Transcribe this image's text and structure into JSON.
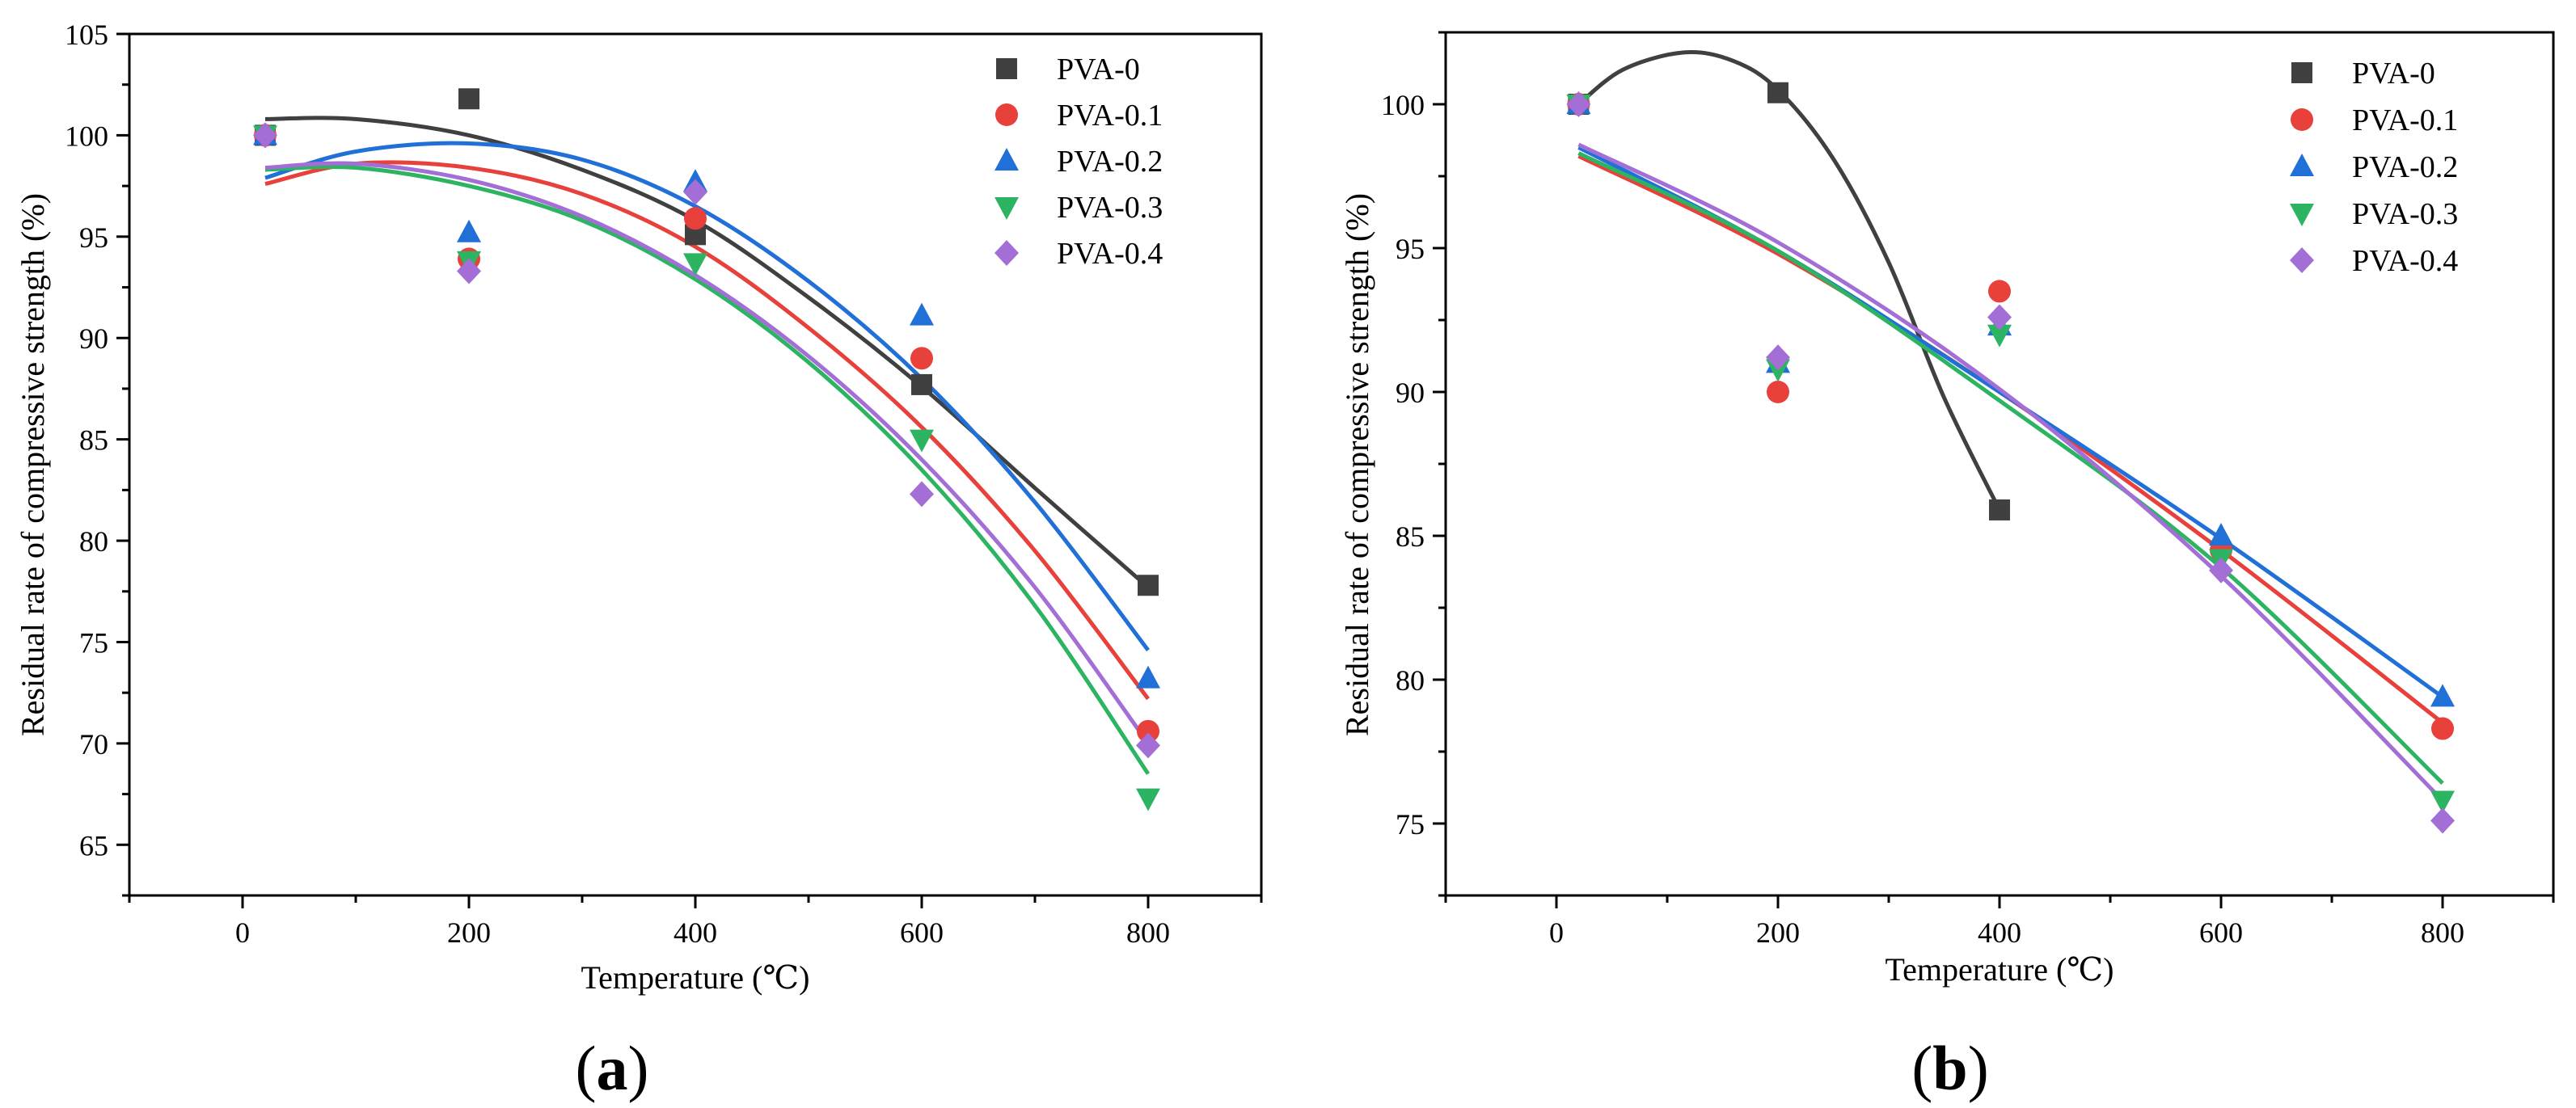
{
  "figure": {
    "panels": [
      "(a)",
      "(b)"
    ],
    "series_colors": {
      "PVA-0": "#404040",
      "PVA-0.1": "#e8403a",
      "PVA-0.2": "#2170d8",
      "PVA-0.3": "#2db462",
      "PVA-0.4": "#a36fd6"
    },
    "markers": {
      "PVA-0": "square",
      "PVA-0.1": "circle",
      "PVA-0.2": "triangle-up",
      "PVA-0.3": "triangle-down",
      "PVA-0.4": "diamond"
    }
  },
  "chart_data": [
    {
      "type": "scatter",
      "panel_label": "(a)",
      "xlabel": "Temperature (℃)",
      "ylabel": "Residual rate of compressive strength (%)",
      "xlim": [
        -100,
        900
      ],
      "ylim": [
        62.5,
        105
      ],
      "xticks": [
        0,
        200,
        400,
        600,
        800
      ],
      "yticks": [
        65,
        70,
        75,
        80,
        85,
        90,
        95,
        100,
        105
      ],
      "legend_position": "top-right",
      "x": [
        20,
        200,
        400,
        600,
        800
      ],
      "series": [
        {
          "name": "PVA-0",
          "values": [
            100,
            101.8,
            95.1,
            87.7,
            77.8
          ],
          "fit": [
            [
              20,
              100.8
            ],
            [
              100,
              100.8
            ],
            [
              200,
              100.0
            ],
            [
              300,
              98.3
            ],
            [
              400,
              95.8
            ],
            [
              500,
              92.0
            ],
            [
              600,
              87.6
            ],
            [
              700,
              82.6
            ],
            [
              800,
              77.7
            ]
          ]
        },
        {
          "name": "PVA-0.1",
          "values": [
            100,
            93.9,
            95.9,
            89.0,
            70.6
          ],
          "fit": [
            [
              20,
              97.6
            ],
            [
              100,
              98.6
            ],
            [
              200,
              98.4
            ],
            [
              300,
              97.1
            ],
            [
              400,
              94.5
            ],
            [
              500,
              90.5
            ],
            [
              600,
              85.6
            ],
            [
              700,
              79.5
            ],
            [
              800,
              72.2
            ]
          ]
        },
        {
          "name": "PVA-0.2",
          "values": [
            100,
            95.2,
            97.7,
            91.1,
            73.2
          ],
          "fit": [
            [
              20,
              97.9
            ],
            [
              100,
              99.2
            ],
            [
              200,
              99.6
            ],
            [
              300,
              98.8
            ],
            [
              400,
              96.5
            ],
            [
              500,
              92.8
            ],
            [
              600,
              88.0
            ],
            [
              700,
              81.9
            ],
            [
              800,
              74.6
            ]
          ]
        },
        {
          "name": "PVA-0.3",
          "values": [
            100,
            93.8,
            93.7,
            85.0,
            67.3
          ],
          "fit": [
            [
              20,
              98.3
            ],
            [
              100,
              98.4
            ],
            [
              200,
              97.5
            ],
            [
              300,
              95.8
            ],
            [
              400,
              92.9
            ],
            [
              500,
              88.8
            ],
            [
              600,
              83.5
            ],
            [
              700,
              76.8
            ],
            [
              800,
              68.5
            ]
          ]
        },
        {
          "name": "PVA-0.4",
          "values": [
            100,
            93.3,
            97.2,
            82.3,
            69.9
          ],
          "fit": [
            [
              20,
              98.4
            ],
            [
              100,
              98.6
            ],
            [
              200,
              97.8
            ],
            [
              300,
              96.0
            ],
            [
              400,
              93.1
            ],
            [
              500,
              89.1
            ],
            [
              600,
              84.0
            ],
            [
              700,
              77.7
            ],
            [
              800,
              70.0
            ]
          ]
        }
      ]
    },
    {
      "type": "scatter",
      "panel_label": "(b)",
      "xlabel": "Temperature (℃)",
      "ylabel": "Residual rate of compressive strength (%)",
      "xlim": [
        -100,
        900
      ],
      "ylim": [
        72.5,
        102.5
      ],
      "xticks": [
        0,
        200,
        400,
        600,
        800
      ],
      "yticks": [
        75,
        80,
        85,
        90,
        95,
        100
      ],
      "legend_position": "top-right",
      "x": [
        20,
        200,
        400,
        600,
        800
      ],
      "series": [
        {
          "name": "PVA-0",
          "values": [
            100,
            100.4,
            85.9
          ],
          "fit": [
            [
              20,
              100.0
            ],
            [
              60,
              101.2
            ],
            [
              115,
              101.8
            ],
            [
              160,
              101.5
            ],
            [
              200,
              100.5
            ],
            [
              250,
              98.1
            ],
            [
              300,
              94.5
            ],
            [
              350,
              89.8
            ],
            [
              400,
              85.9
            ]
          ]
        },
        {
          "name": "PVA-0.1",
          "values": [
            100,
            90.0,
            93.5,
            84.5,
            78.3
          ],
          "fit": [
            [
              20,
              98.2
            ],
            [
              200,
              94.8
            ],
            [
              400,
              90.0
            ],
            [
              600,
              84.5
            ],
            [
              800,
              78.5
            ]
          ]
        },
        {
          "name": "PVA-0.2",
          "values": [
            100,
            91.0,
            92.3,
            85.0,
            79.4
          ],
          "fit": [
            [
              20,
              98.5
            ],
            [
              200,
              94.9
            ],
            [
              400,
              90.0
            ],
            [
              600,
              84.9
            ],
            [
              800,
              79.4
            ]
          ]
        },
        {
          "name": "PVA-0.3",
          "values": [
            100,
            90.8,
            92.0,
            84.2,
            75.8
          ],
          "fit": [
            [
              20,
              98.3
            ],
            [
              200,
              94.9
            ],
            [
              400,
              89.7
            ],
            [
              600,
              83.9
            ],
            [
              800,
              76.4
            ]
          ]
        },
        {
          "name": "PVA-0.4",
          "values": [
            100,
            91.2,
            92.6,
            83.8,
            75.1
          ],
          "fit": [
            [
              20,
              98.6
            ],
            [
              200,
              95.2
            ],
            [
              400,
              90.1
            ],
            [
              600,
              83.6
            ],
            [
              800,
              75.8
            ]
          ]
        }
      ]
    }
  ]
}
